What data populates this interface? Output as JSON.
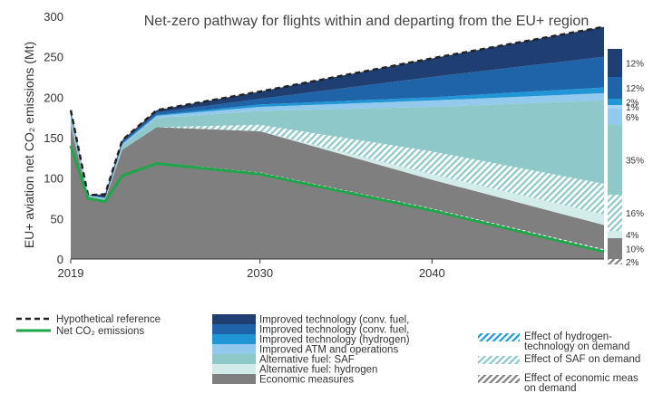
{
  "chart_data": {
    "type": "area",
    "title": "Net-zero pathway for flights within and departing from the EU+ region",
    "ylabel": "EU+ aviation net CO₂ emissions (Mt)",
    "ylim": [
      0,
      300
    ],
    "yticks": [
      "0",
      "50",
      "100",
      "150",
      "200",
      "250",
      "300"
    ],
    "xlim": [
      2019,
      2050
    ],
    "xticks": [
      "2019",
      "2030",
      "2040"
    ],
    "x": [
      2019,
      2020,
      2021,
      2022,
      2024,
      2030,
      2040,
      2050
    ],
    "reference": [
      184,
      79,
      80,
      147,
      184,
      207,
      248,
      287
    ],
    "net_emissions": [
      140,
      75,
      71,
      103,
      118,
      105,
      60,
      9
    ],
    "stack_series": [
      {
        "name": "Economic measures",
        "color": "#7f7f7f",
        "values": [
          140,
          75,
          71,
          103,
          118,
          105,
          60,
          9
        ]
      },
      {
        "name": "Economic measures",
        "color": "#7f7f7f",
        "values": [
          165,
          77,
          73,
          135,
          163,
          158,
          98,
          42
        ]
      },
      {
        "name": "Alternative fuel: hydrogen",
        "color": "#d2ece9",
        "values": [
          165,
          77,
          73,
          135,
          163,
          158,
          105,
          55
        ]
      },
      {
        "name": "Alternative fuel: SAF",
        "color": "#8ec8c9",
        "values": [
          175,
          78,
          74,
          140,
          174,
          183,
          188,
          196
        ]
      },
      {
        "name": "Improved ATM and operations",
        "color": "#93c9ec",
        "values": [
          177,
          78.5,
          75,
          142,
          177,
          188,
          196,
          205
        ]
      },
      {
        "name": "Improved technology (hydrogen)",
        "color": "#2196d6",
        "values": [
          178,
          78.7,
          75.5,
          143,
          178,
          191,
          200,
          212
        ]
      },
      {
        "name": "Improved technology (conv. fuel, ...)",
        "color": "#1f63a8",
        "values": [
          181,
          79,
          76,
          145,
          181,
          198,
          225,
          250
        ]
      },
      {
        "name": "Improved technology (conv. fuel, ...)",
        "color": "#1f3f73",
        "values": [
          184,
          79,
          80,
          147,
          184,
          207,
          248,
          287
        ]
      }
    ],
    "right_bar": [
      {
        "label": "12%",
        "color": "#1f3f73"
      },
      {
        "label": "12%",
        "color": "#1f63a8"
      },
      {
        "label": "2%",
        "color": "#2196d6"
      },
      {
        "label": "1%",
        "color": "#a8d5ef"
      },
      {
        "label": "6%",
        "color": "#93c9ec"
      },
      {
        "label": "35%",
        "color": "#8ec8c9"
      },
      {
        "label": "16%",
        "color": "hatch-teal"
      },
      {
        "label": "4%",
        "color": "#d2ece9"
      },
      {
        "label": "10%",
        "color": "#7f7f7f"
      },
      {
        "label": "2%",
        "color": "hatch-grey"
      }
    ],
    "legend_left": [
      {
        "label": "Hypothetical reference",
        "style": "dashed"
      },
      {
        "label": "Net CO₂ emissions",
        "style": "green"
      }
    ],
    "legend_mid": [
      {
        "label": "Improved technology (conv. fuel,",
        "color": "#1f3f73"
      },
      {
        "label": "Improved technology (conv. fuel,",
        "color": "#1f63a8"
      },
      {
        "label": "Improved technology (hydrogen)",
        "color": "#2196d6"
      },
      {
        "label": "Improved ATM and operations",
        "color": "#93c9ec"
      },
      {
        "label": "Alternative fuel: SAF",
        "color": "#8ec8c9"
      },
      {
        "label": "Alternative fuel: hydrogen",
        "color": "#d2ece9"
      },
      {
        "label": "Economic measures",
        "color": "#7f7f7f"
      }
    ],
    "legend_right": [
      {
        "lines": [
          "Effect of hydrogen-",
          "technology on demand"
        ],
        "hatch": "blue"
      },
      {
        "lines": [
          "Effect of SAF on demand"
        ],
        "hatch": "teal"
      },
      {
        "lines": [
          "Effect of economic meas",
          "on demand"
        ],
        "hatch": "grey"
      }
    ],
    "grid": false,
    "legend_position": "bottom"
  }
}
